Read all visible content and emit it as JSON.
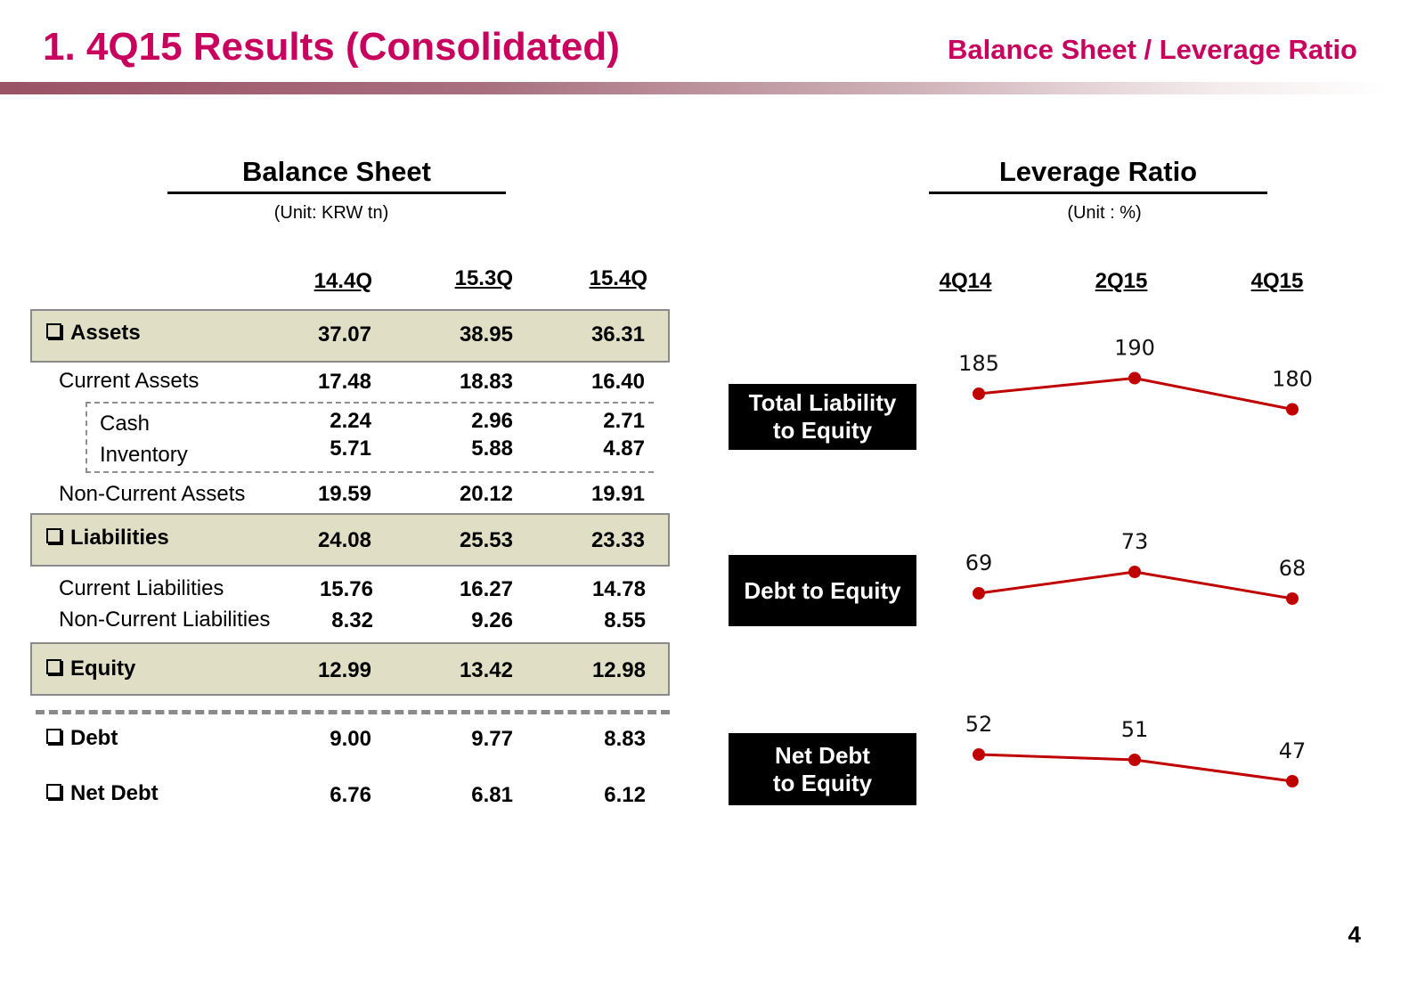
{
  "header": {
    "title": "1. 4Q15 Results (Consolidated)",
    "subtitle": "Balance Sheet / Leverage Ratio",
    "brand_color": "#c8005e"
  },
  "balance_sheet": {
    "title": "Balance Sheet",
    "unit": "(Unit: KRW tn)",
    "columns": [
      "14.4Q",
      "15.3Q",
      "15.4Q"
    ],
    "rows": [
      {
        "label": "Assets",
        "values": [
          "37.07",
          "38.95",
          "36.31"
        ],
        "type": "header"
      },
      {
        "label": "Current Assets",
        "values": [
          "17.48",
          "18.83",
          "16.40"
        ],
        "type": "sub"
      },
      {
        "label": "Cash",
        "values": [
          "2.24",
          "2.96",
          "2.71"
        ],
        "type": "detail"
      },
      {
        "label": "Inventory",
        "values": [
          "5.71",
          "5.88",
          "4.87"
        ],
        "type": "detail"
      },
      {
        "label": "Non-Current Assets",
        "values": [
          "19.59",
          "20.12",
          "19.91"
        ],
        "type": "sub"
      },
      {
        "label": "Liabilities",
        "values": [
          "24.08",
          "25.53",
          "23.33"
        ],
        "type": "header"
      },
      {
        "label": "Current Liabilities",
        "values": [
          "15.76",
          "16.27",
          "14.78"
        ],
        "type": "sub"
      },
      {
        "label": "Non-Current Liabilities",
        "values": [
          "8.32",
          "9.26",
          "8.55"
        ],
        "type": "sub"
      },
      {
        "label": "Equity",
        "values": [
          "12.99",
          "13.42",
          "12.98"
        ],
        "type": "header"
      },
      {
        "label": "Debt",
        "values": [
          "9.00",
          "9.77",
          "8.83"
        ],
        "type": "bullet"
      },
      {
        "label": "Net Debt",
        "values": [
          "6.76",
          "6.81",
          "6.12"
        ],
        "type": "bullet"
      }
    ]
  },
  "leverage": {
    "title": "Leverage Ratio",
    "unit": "(Unit : %)"
  },
  "chart_data": {
    "type": "line",
    "title": "Leverage Ratio",
    "ylabel": "(Unit : %)",
    "categories": [
      "4Q14",
      "2Q15",
      "4Q15"
    ],
    "line_color": "#c00000",
    "series": [
      {
        "name": "Total Liability\nto Equity",
        "values": [
          185,
          190,
          180
        ],
        "labels": [
          "185",
          "190",
          "180"
        ]
      },
      {
        "name": "Debt to Equity",
        "values": [
          69,
          73,
          68
        ],
        "labels": [
          "69",
          "73",
          "68"
        ]
      },
      {
        "name": "Net Debt\nto Equity",
        "values": [
          52,
          51,
          47
        ],
        "labels": [
          "52",
          "51",
          "47"
        ]
      }
    ]
  },
  "page_number": "4"
}
